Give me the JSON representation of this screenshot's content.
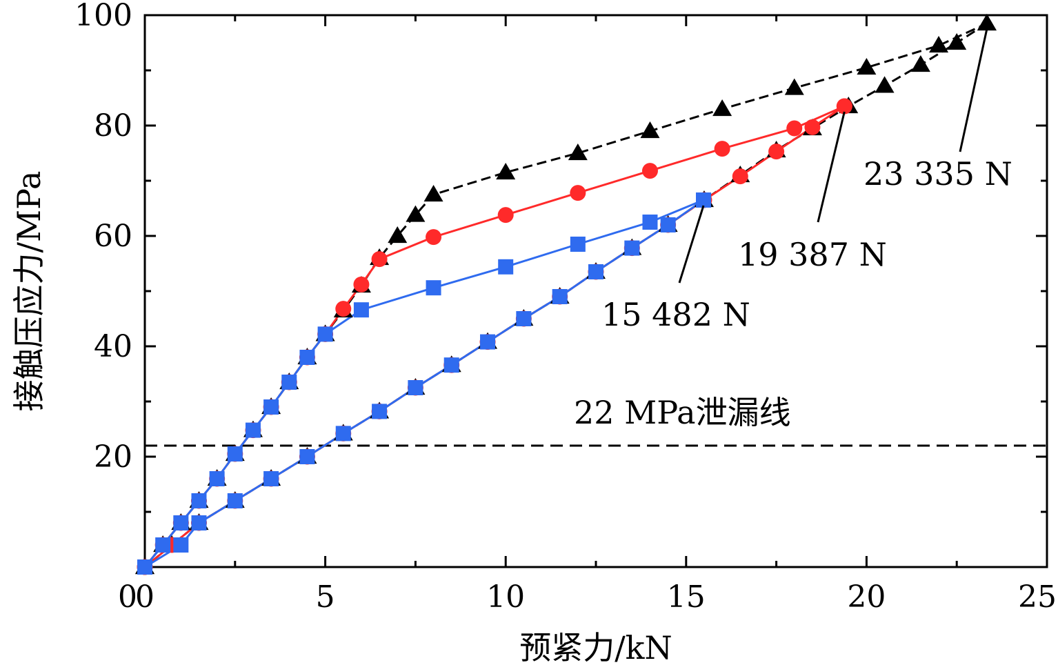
{
  "chart_data": {
    "type": "line",
    "title": "",
    "xlabel": "预紧力/kN",
    "ylabel": "接触压应力/MPa",
    "xlim": [
      0,
      25
    ],
    "ylim": [
      0,
      100
    ],
    "xticks": [
      0,
      5,
      10,
      15,
      20,
      25
    ],
    "yticks": [
      20,
      40,
      60,
      80,
      100
    ],
    "grid": false,
    "legend": "none",
    "colors": {
      "black": "#000000",
      "red": "#ff2a2a",
      "blue": "#2f6bef"
    },
    "series": [
      {
        "name": "23 335 N",
        "color": "#000000",
        "marker": "triangle",
        "loading": [
          [
            0,
            0
          ],
          [
            0.5,
            4
          ],
          [
            1,
            8
          ],
          [
            1.5,
            12
          ],
          [
            2,
            16
          ],
          [
            2.5,
            20.5
          ],
          [
            3,
            24.8
          ],
          [
            3.5,
            29
          ],
          [
            4,
            33.5
          ],
          [
            4.5,
            38
          ],
          [
            5,
            42.2
          ],
          [
            5.5,
            46.5
          ],
          [
            6,
            51
          ],
          [
            6.5,
            56
          ],
          [
            7,
            60
          ],
          [
            7.5,
            63.8
          ],
          [
            8,
            67.5
          ],
          [
            10,
            71.5
          ],
          [
            12,
            75
          ],
          [
            14,
            79
          ],
          [
            16,
            83
          ],
          [
            18,
            86.8
          ],
          [
            20,
            90.5
          ],
          [
            22,
            94.5
          ],
          [
            23.335,
            98.5
          ]
        ],
        "unloading": [
          [
            23.335,
            98.5
          ],
          [
            22.5,
            95
          ],
          [
            21.5,
            91
          ],
          [
            20.5,
            87.2
          ],
          [
            19.5,
            83.5
          ],
          [
            18.5,
            79.5
          ],
          [
            17.5,
            75.5
          ],
          [
            16.5,
            71
          ],
          [
            15.5,
            66.5
          ],
          [
            14.5,
            62
          ],
          [
            13.5,
            57.8
          ],
          [
            12.5,
            53.5
          ],
          [
            11.5,
            49
          ],
          [
            10.5,
            45
          ],
          [
            9.5,
            40.8
          ],
          [
            8.5,
            36.6
          ],
          [
            7.5,
            32.5
          ],
          [
            6.5,
            28.2
          ],
          [
            5.5,
            24.2
          ],
          [
            4.5,
            20
          ],
          [
            3.5,
            16
          ],
          [
            2.5,
            12
          ],
          [
            1.5,
            8
          ],
          [
            0.75,
            4
          ],
          [
            0,
            0
          ]
        ]
      },
      {
        "name": "19 387 N",
        "color": "#ff2a2a",
        "marker": "circle",
        "loading": [
          [
            0,
            0
          ],
          [
            0.5,
            4
          ],
          [
            1,
            8
          ],
          [
            1.5,
            12
          ],
          [
            2,
            16
          ],
          [
            2.5,
            20.5
          ],
          [
            3,
            24.8
          ],
          [
            3.5,
            29
          ],
          [
            4,
            33.5
          ],
          [
            4.5,
            38
          ],
          [
            5,
            42.2
          ],
          [
            5.5,
            46.8
          ],
          [
            6,
            51.2
          ],
          [
            6.5,
            55.8
          ],
          [
            8,
            59.8
          ],
          [
            10,
            63.8
          ],
          [
            12,
            67.8
          ],
          [
            14,
            71.8
          ],
          [
            16,
            75.8
          ],
          [
            18,
            79.5
          ],
          [
            19.387,
            83.5
          ]
        ],
        "unloading": [
          [
            19.387,
            83.5
          ],
          [
            18.5,
            79.7
          ],
          [
            17.5,
            75.3
          ],
          [
            16.5,
            70.8
          ],
          [
            15.5,
            66.5
          ],
          [
            14.5,
            62
          ],
          [
            13.5,
            57.8
          ],
          [
            12.5,
            53.5
          ],
          [
            11.5,
            49
          ],
          [
            10.5,
            45
          ],
          [
            9.5,
            40.8
          ],
          [
            8.5,
            36.6
          ],
          [
            7.5,
            32.5
          ],
          [
            6.5,
            28.2
          ],
          [
            5.5,
            24.2
          ],
          [
            4.5,
            20
          ],
          [
            3.5,
            16
          ],
          [
            2.5,
            12
          ],
          [
            1.5,
            8
          ],
          [
            0.75,
            4
          ],
          [
            0,
            0
          ]
        ]
      },
      {
        "name": "15 482 N",
        "color": "#2f6bef",
        "marker": "square",
        "loading": [
          [
            0,
            0
          ],
          [
            0.5,
            4
          ],
          [
            1,
            8
          ],
          [
            1.5,
            12
          ],
          [
            2,
            16
          ],
          [
            2.5,
            20.5
          ],
          [
            3,
            24.8
          ],
          [
            3.5,
            29
          ],
          [
            4,
            33.5
          ],
          [
            4.5,
            38
          ],
          [
            5,
            42.2
          ],
          [
            6,
            46.6
          ],
          [
            8,
            50.6
          ],
          [
            10,
            54.4
          ],
          [
            12,
            58.5
          ],
          [
            14,
            62.5
          ],
          [
            15.482,
            66.5
          ]
        ],
        "unloading": [
          [
            15.482,
            66.5
          ],
          [
            14.5,
            62
          ],
          [
            13.5,
            57.8
          ],
          [
            12.5,
            53.5
          ],
          [
            11.5,
            49
          ],
          [
            10.5,
            45
          ],
          [
            9.5,
            40.8
          ],
          [
            8.5,
            36.6
          ],
          [
            7.5,
            32.5
          ],
          [
            6.5,
            28.2
          ],
          [
            5.5,
            24.2
          ],
          [
            4.5,
            20
          ],
          [
            3.5,
            16
          ],
          [
            2.5,
            12
          ],
          [
            1.5,
            8
          ],
          [
            1,
            4
          ],
          [
            0,
            0
          ]
        ]
      }
    ],
    "reference_line": {
      "y": 22,
      "label": "22 MPa泄漏线",
      "style": "dashed"
    },
    "annotations": [
      {
        "text": "23 335 N",
        "target": [
          23.335,
          98.5
        ]
      },
      {
        "text": "19 387 N",
        "target": [
          19.387,
          83.5
        ]
      },
      {
        "text": "15 482 N",
        "target": [
          15.482,
          66.5
        ]
      }
    ]
  }
}
